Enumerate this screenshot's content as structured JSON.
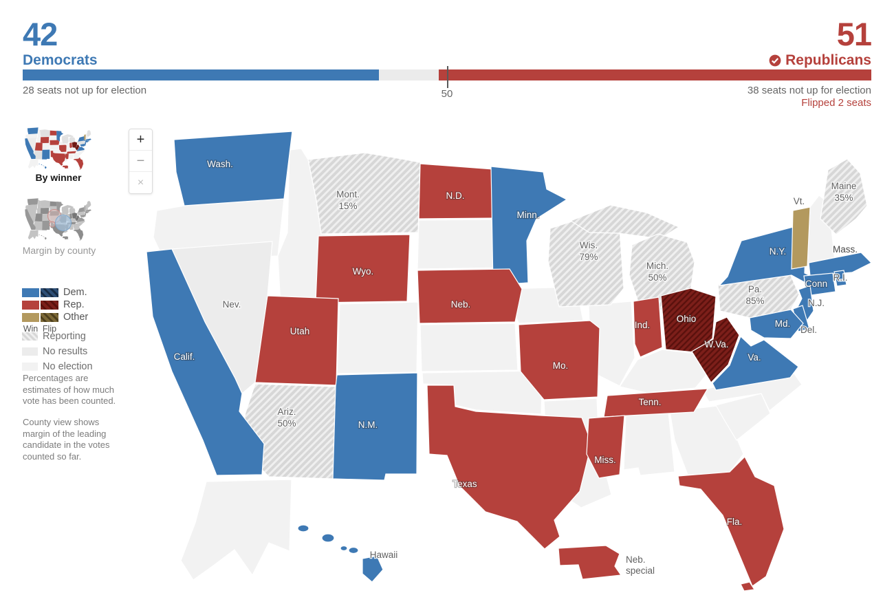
{
  "colors": {
    "dem": "#3e79b4",
    "rep": "#b5413c",
    "dem_flip": "#2e4f76",
    "dem_flip_stripe": "#182c44",
    "rep_flip": "#7c1f1a",
    "rep_flip_stripe": "#5a110d",
    "other": "#b3995e",
    "other_flip": "#7b6836",
    "other_flip_stripe": "#4d3f1d",
    "reporting": "#d7d7d7",
    "reporting_stripe": "#efefef",
    "no_results": "#ececec",
    "no_election": "#f2f2f2"
  },
  "header": {
    "dem": {
      "count": "42",
      "label": "Democrats",
      "seats": 42
    },
    "rep": {
      "count": "51",
      "label": "Republicans",
      "seats": 51
    },
    "total_seats": 100,
    "bar": {
      "midpoint": 50,
      "midpoint_label": "50",
      "dem_note": "28 seats not up for election",
      "rep_note": "38 seats not up for election",
      "flip_note": "Flipped 2 seats"
    }
  },
  "controls": {
    "zoom_in": "+",
    "zoom_out": "−",
    "close": "×"
  },
  "view_toggle": {
    "by_winner": "By winner",
    "margin_by_county": "Margin by county"
  },
  "legend": {
    "rows": [
      {
        "party": "Dem."
      },
      {
        "party": "Rep."
      },
      {
        "party": "Other"
      }
    ],
    "win_label": "Win",
    "flip_label": "Flip",
    "reporting": "Reporting",
    "no_results": "No results",
    "no_election": "No election"
  },
  "notes": [
    "Percentages are estimates of how much vote has been counted.",
    "County view shows margin of the leading candidate in the votes counted so far."
  ],
  "map": {
    "states": [
      {
        "id": "alaska",
        "status": "no_election"
      },
      {
        "id": "ore",
        "status": "no_election"
      },
      {
        "id": "idaho",
        "status": "no_election"
      },
      {
        "id": "sd",
        "status": "no_election"
      },
      {
        "id": "iowa",
        "status": "no_election"
      },
      {
        "id": "colo",
        "status": "no_election"
      },
      {
        "id": "kan",
        "status": "no_election"
      },
      {
        "id": "okla",
        "status": "no_election"
      },
      {
        "id": "ark",
        "status": "no_election"
      },
      {
        "id": "la",
        "status": "no_election"
      },
      {
        "id": "ill",
        "status": "no_election"
      },
      {
        "id": "ky",
        "status": "no_election"
      },
      {
        "id": "ala",
        "status": "no_election"
      },
      {
        "id": "ga",
        "status": "no_election"
      },
      {
        "id": "sc",
        "status": "no_election"
      },
      {
        "id": "nc",
        "status": "no_election"
      },
      {
        "id": "nh",
        "status": "no_election"
      },
      {
        "id": "nev",
        "label": "Nev.",
        "status": "no_results",
        "label_style": "gray"
      },
      {
        "id": "wash",
        "label": "Wash.",
        "status": "dem",
        "label_style": "light"
      },
      {
        "id": "mont",
        "label": "Mont.",
        "pct": "15%",
        "status": "reporting",
        "label_style": "gray"
      },
      {
        "id": "nd",
        "label": "N.D.",
        "status": "rep",
        "label_style": "light"
      },
      {
        "id": "minn",
        "label": "Minn.",
        "status": "dem",
        "label_style": "light"
      },
      {
        "id": "wis",
        "label": "Wis.",
        "pct": "79%",
        "status": "reporting",
        "label_style": "gray"
      },
      {
        "id": "mich",
        "label": "Mich.",
        "pct": "50%",
        "status": "reporting",
        "label_style": "gray"
      },
      {
        "id": "wyo",
        "label": "Wyo.",
        "status": "rep",
        "label_style": "light"
      },
      {
        "id": "neb",
        "label": "Neb.",
        "status": "rep",
        "label_style": "light"
      },
      {
        "id": "utah",
        "label": "Utah",
        "status": "rep",
        "label_style": "light"
      },
      {
        "id": "ariz",
        "label": "Ariz.",
        "pct": "50%",
        "status": "reporting",
        "label_style": "gray"
      },
      {
        "id": "nm",
        "label": "N.M.",
        "status": "dem",
        "label_style": "light"
      },
      {
        "id": "calif",
        "label": "Calif.",
        "status": "dem",
        "label_style": "light"
      },
      {
        "id": "texas",
        "label": "Texas",
        "status": "rep",
        "label_style": "light"
      },
      {
        "id": "mo",
        "label": "Mo.",
        "status": "rep",
        "label_style": "light"
      },
      {
        "id": "ind",
        "label": "Ind.",
        "status": "rep",
        "label_style": "light"
      },
      {
        "id": "ohio",
        "label": "Ohio",
        "status": "rep_flip",
        "label_style": "light"
      },
      {
        "id": "wva",
        "label": "W.Va.",
        "status": "rep_flip",
        "label_style": "light"
      },
      {
        "id": "va",
        "label": "Va.",
        "status": "dem",
        "label_style": "light"
      },
      {
        "id": "tenn",
        "label": "Tenn.",
        "status": "rep",
        "label_style": "light"
      },
      {
        "id": "miss",
        "label": "Miss.",
        "status": "rep",
        "label_style": "light"
      },
      {
        "id": "fla",
        "label": "Fla.",
        "status": "rep",
        "label_style": "light"
      },
      {
        "id": "fla_keys",
        "status": "rep"
      },
      {
        "id": "pa",
        "label": "Pa.",
        "pct": "85%",
        "status": "reporting",
        "label_style": "gray"
      },
      {
        "id": "ny",
        "label": "N.Y.",
        "status": "dem",
        "label_style": "light"
      },
      {
        "id": "vt",
        "label": "Vt.",
        "status": "other",
        "label_style": "gray"
      },
      {
        "id": "maine",
        "label": "Maine",
        "pct": "35%",
        "status": "reporting",
        "label_style": "gray"
      },
      {
        "id": "mass",
        "label": "Mass.",
        "status": "dem",
        "label_style": "dark"
      },
      {
        "id": "conn",
        "label": "Conn",
        "status": "dem",
        "label_style": "light"
      },
      {
        "id": "ri",
        "label": "R.I.",
        "status": "dem",
        "label_style": "gray"
      },
      {
        "id": "nj",
        "label": "N.J.",
        "status": "dem",
        "label_style": "gray"
      },
      {
        "id": "del",
        "label": "Del.",
        "status": "dem",
        "label_style": "gray"
      },
      {
        "id": "md",
        "label": "Md.",
        "status": "dem",
        "label_style": "light"
      },
      {
        "id": "hawaii",
        "label": "Hawaii",
        "status": "dem",
        "label_style": "gray"
      },
      {
        "id": "neb_special",
        "label": "Neb.",
        "label2": "special",
        "status": "rep",
        "label_style": "gray"
      }
    ]
  }
}
